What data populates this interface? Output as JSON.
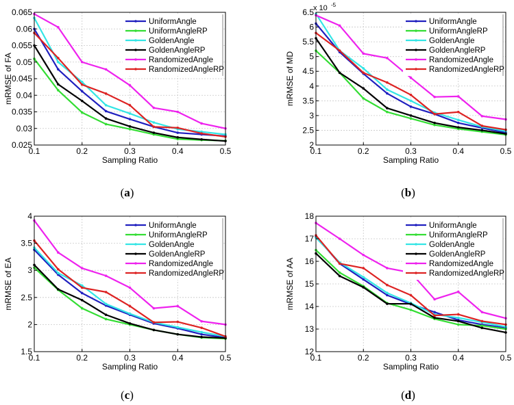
{
  "legend_entries": [
    {
      "name": "UniformAngle",
      "color": "#1f1fbf"
    },
    {
      "name": "UniformAngleRP",
      "color": "#33dd33"
    },
    {
      "name": "GoldenAngle",
      "color": "#33e5e5"
    },
    {
      "name": "GoldenAngleRP",
      "color": "#000000"
    },
    {
      "name": "RandomizedAngle",
      "color": "#ee22ee"
    },
    {
      "name": "RandomizedAngleRP",
      "color": "#dd2222"
    }
  ],
  "chart_data": [
    {
      "type": "line",
      "panel_label": "(a)",
      "xlabel": "Sampling Ratio",
      "ylabel": "mRMSE of FA",
      "exponent_label": "",
      "xlim": [
        0.1,
        0.5
      ],
      "ylim": [
        0.025,
        0.065
      ],
      "xticks": [
        0.1,
        0.2,
        0.3,
        0.4,
        0.5
      ],
      "xtick_labels": [
        "0.1",
        "0.2",
        "0.3",
        "0.4",
        "0.5"
      ],
      "yticks": [
        0.025,
        0.03,
        0.035,
        0.04,
        0.045,
        0.05,
        0.055,
        0.06,
        0.065
      ],
      "ytick_labels": [
        "0.025",
        "0.03",
        "0.035",
        "0.04",
        "0.045",
        "0.05",
        "0.055",
        "0.06",
        "0.065"
      ],
      "grid": true,
      "legend": "top-right",
      "x": [
        0.1,
        0.15,
        0.2,
        0.25,
        0.3,
        0.35,
        0.4,
        0.45,
        0.5
      ],
      "series": [
        {
          "name": "UniformAngle",
          "values": [
            0.06,
            0.0478,
            0.0412,
            0.0352,
            0.0328,
            0.0305,
            0.0287,
            0.0282,
            0.0277
          ]
        },
        {
          "name": "UniformAngleRP",
          "values": [
            0.051,
            0.0415,
            0.0348,
            0.0313,
            0.0298,
            0.0282,
            0.0268,
            0.0265,
            0.0263
          ]
        },
        {
          "name": "GoldenAngle",
          "values": [
            0.0633,
            0.05,
            0.044,
            0.037,
            0.0345,
            0.0318,
            0.0298,
            0.029,
            0.0282
          ]
        },
        {
          "name": "GoldenAngleRP",
          "values": [
            0.055,
            0.0433,
            0.0383,
            0.033,
            0.0306,
            0.0287,
            0.0273,
            0.0267,
            0.0262
          ]
        },
        {
          "name": "RandomizedAngle",
          "values": [
            0.0645,
            0.0605,
            0.05,
            0.0478,
            0.043,
            0.0362,
            0.035,
            0.0315,
            0.03
          ]
        },
        {
          "name": "RandomizedAngleRP",
          "values": [
            0.0588,
            0.0512,
            0.0432,
            0.0405,
            0.037,
            0.0305,
            0.0302,
            0.0285,
            0.0275
          ]
        }
      ]
    },
    {
      "type": "line",
      "panel_label": "(b)",
      "xlabel": "Sampling Ratio",
      "ylabel": "mRMSE of MD",
      "exponent_label": "x 10",
      "exponent_value": "-5",
      "xlim": [
        0.1,
        0.5
      ],
      "ylim": [
        2,
        6.5
      ],
      "xticks": [
        0.1,
        0.2,
        0.3,
        0.4,
        0.5
      ],
      "xtick_labels": [
        "0.1",
        "0.2",
        "0.3",
        "0.4",
        "0.5"
      ],
      "yticks": [
        2,
        2.5,
        3,
        3.5,
        4,
        4.5,
        5,
        5.5,
        6,
        6.5
      ],
      "ytick_labels": [
        "2",
        "2.5",
        "3",
        "3.5",
        "4",
        "4.5",
        "5",
        "5.5",
        "6",
        "6.5"
      ],
      "grid": true,
      "legend": "top-right",
      "x": [
        0.1,
        0.15,
        0.2,
        0.25,
        0.3,
        0.35,
        0.4,
        0.45,
        0.5
      ],
      "series": [
        {
          "name": "UniformAngle",
          "values": [
            6.12,
            5.15,
            4.42,
            3.75,
            3.3,
            3.05,
            2.75,
            2.58,
            2.42
          ]
        },
        {
          "name": "UniformAngleRP",
          "values": [
            5.2,
            4.45,
            3.58,
            3.12,
            2.9,
            2.68,
            2.55,
            2.45,
            2.35
          ]
        },
        {
          "name": "GoldenAngle",
          "values": [
            6.45,
            5.2,
            4.6,
            3.88,
            3.5,
            3.1,
            2.85,
            2.62,
            2.47
          ]
        },
        {
          "name": "GoldenAngleRP",
          "values": [
            5.62,
            4.45,
            3.92,
            3.25,
            3.0,
            2.75,
            2.6,
            2.5,
            2.38
          ]
        },
        {
          "name": "RandomizedAngle",
          "values": [
            6.4,
            6.05,
            5.1,
            4.95,
            4.28,
            3.63,
            3.65,
            2.98,
            2.87
          ]
        },
        {
          "name": "RandomizedAngleRP",
          "values": [
            5.8,
            5.2,
            4.45,
            4.12,
            3.7,
            3.05,
            3.12,
            2.65,
            2.52
          ]
        }
      ]
    },
    {
      "type": "line",
      "panel_label": "(c)",
      "xlabel": "Sampling Ratio",
      "ylabel": "mRMSE of EA",
      "exponent_label": "",
      "xlim": [
        0.1,
        0.5
      ],
      "ylim": [
        1.5,
        4
      ],
      "xticks": [
        0.1,
        0.2,
        0.3,
        0.4,
        0.5
      ],
      "xtick_labels": [
        "0.1",
        "0.2",
        "0.3",
        "0.4",
        "0.5"
      ],
      "yticks": [
        1.5,
        2,
        2.5,
        3,
        3.5,
        4
      ],
      "ytick_labels": [
        "1.5",
        "2",
        "2.5",
        "3",
        "3.5",
        "4"
      ],
      "grid": true,
      "legend": "top-right",
      "x": [
        0.1,
        0.15,
        0.2,
        0.25,
        0.3,
        0.35,
        0.4,
        0.45,
        0.5
      ],
      "series": [
        {
          "name": "UniformAngle",
          "values": [
            3.38,
            2.92,
            2.58,
            2.35,
            2.18,
            2.02,
            1.93,
            1.82,
            1.76
          ]
        },
        {
          "name": "UniformAngleRP",
          "values": [
            3.05,
            2.64,
            2.3,
            2.1,
            2.0,
            1.9,
            1.82,
            1.76,
            1.74
          ]
        },
        {
          "name": "GoldenAngle",
          "values": [
            3.42,
            2.95,
            2.72,
            2.38,
            2.2,
            2.04,
            1.95,
            1.86,
            1.78
          ]
        },
        {
          "name": "GoldenAngleRP",
          "values": [
            3.1,
            2.65,
            2.45,
            2.18,
            2.02,
            1.9,
            1.82,
            1.77,
            1.75
          ]
        },
        {
          "name": "RandomizedAngle",
          "values": [
            3.92,
            3.33,
            3.04,
            2.9,
            2.68,
            2.3,
            2.34,
            2.06,
            2.0
          ]
        },
        {
          "name": "RandomizedAngleRP",
          "values": [
            3.55,
            3.02,
            2.68,
            2.6,
            2.34,
            2.04,
            2.05,
            1.94,
            1.78
          ]
        }
      ]
    },
    {
      "type": "line",
      "panel_label": "(d)",
      "xlabel": "Sampling Ratio",
      "ylabel": "mRMSE of AA",
      "exponent_label": "",
      "xlim": [
        0.1,
        0.5
      ],
      "ylim": [
        12,
        18
      ],
      "xticks": [
        0.1,
        0.2,
        0.3,
        0.4,
        0.5
      ],
      "xtick_labels": [
        "0.1",
        "0.2",
        "0.3",
        "0.4",
        "0.5"
      ],
      "yticks": [
        12,
        13,
        14,
        15,
        16,
        17,
        18
      ],
      "ytick_labels": [
        "12",
        "13",
        "14",
        "15",
        "16",
        "17",
        "18"
      ],
      "grid": true,
      "legend": "top-right",
      "x": [
        0.1,
        0.15,
        0.2,
        0.25,
        0.3,
        0.35,
        0.4,
        0.45,
        0.5
      ],
      "series": [
        {
          "name": "UniformAngle",
          "values": [
            17.1,
            15.9,
            15.2,
            14.5,
            14.1,
            13.75,
            13.4,
            13.2,
            13.05
          ]
        },
        {
          "name": "UniformAngleRP",
          "values": [
            16.5,
            15.5,
            14.9,
            14.15,
            13.85,
            13.45,
            13.2,
            13.15,
            13.0
          ]
        },
        {
          "name": "GoldenAngle",
          "values": [
            17.05,
            15.95,
            15.3,
            14.6,
            14.15,
            13.65,
            13.5,
            13.3,
            13.1
          ]
        },
        {
          "name": "GoldenAngleRP",
          "values": [
            16.35,
            15.35,
            14.85,
            14.12,
            14.12,
            13.5,
            13.35,
            13.05,
            12.85
          ]
        },
        {
          "name": "RandomizedAngle",
          "values": [
            17.7,
            17.0,
            16.28,
            15.7,
            15.5,
            14.32,
            14.65,
            13.75,
            13.48
          ]
        },
        {
          "name": "RandomizedAngleRP",
          "values": [
            17.15,
            15.9,
            15.7,
            14.95,
            14.5,
            13.6,
            13.65,
            13.35,
            13.2
          ]
        }
      ]
    }
  ]
}
